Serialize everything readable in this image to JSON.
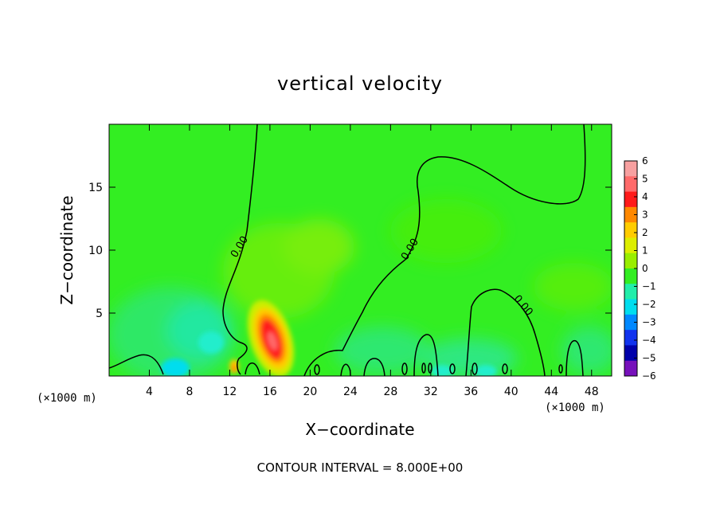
{
  "chart_data": {
    "type": "heatmap",
    "title": "vertical velocity",
    "xlabel": "X−coordinate",
    "ylabel": "Z−coordinate",
    "x_unit_label": "(×1000 m)",
    "y_unit_label": "(×1000 m)",
    "xlim": [
      0,
      50
    ],
    "ylim": [
      0,
      20
    ],
    "x_ticks": [
      4,
      8,
      12,
      16,
      20,
      24,
      28,
      32,
      36,
      40,
      44,
      48
    ],
    "y_ticks": [
      5,
      10,
      15
    ],
    "colorbar": {
      "ticks": [
        6,
        5,
        4,
        3,
        2,
        1,
        0,
        -1,
        -2,
        -3,
        -4,
        -5,
        -6
      ],
      "tick_labels": [
        "6",
        "5",
        "4",
        "3",
        "2",
        "1",
        "0",
        "−1",
        "−2",
        "−3",
        "−4",
        "−5",
        "−6"
      ],
      "colors": [
        "#f7a0a0",
        "#ff6a6a",
        "#ff1a1a",
        "#ff8800",
        "#ffcc00",
        "#ddee00",
        "#99ee00",
        "#33ee22",
        "#22eeaa",
        "#00ddee",
        "#0088ff",
        "#1133ee",
        "#0000aa",
        "#7711bb"
      ]
    },
    "contour_level_label": "0.00",
    "contour_interval_text": "CONTOUR INTERVAL =  8.000E+00",
    "features": [
      {
        "kind": "updraft_max",
        "x": 16.3,
        "z": 2.6,
        "value": 5.5
      },
      {
        "kind": "updraft_small",
        "x": 12.8,
        "z": 0.6,
        "value": 3.0
      },
      {
        "kind": "downdraft",
        "x": 6.0,
        "z": 0.6,
        "value": -2.0
      },
      {
        "kind": "downdraft",
        "x": 9.5,
        "z": 3.0,
        "value": -1.0
      }
    ]
  }
}
